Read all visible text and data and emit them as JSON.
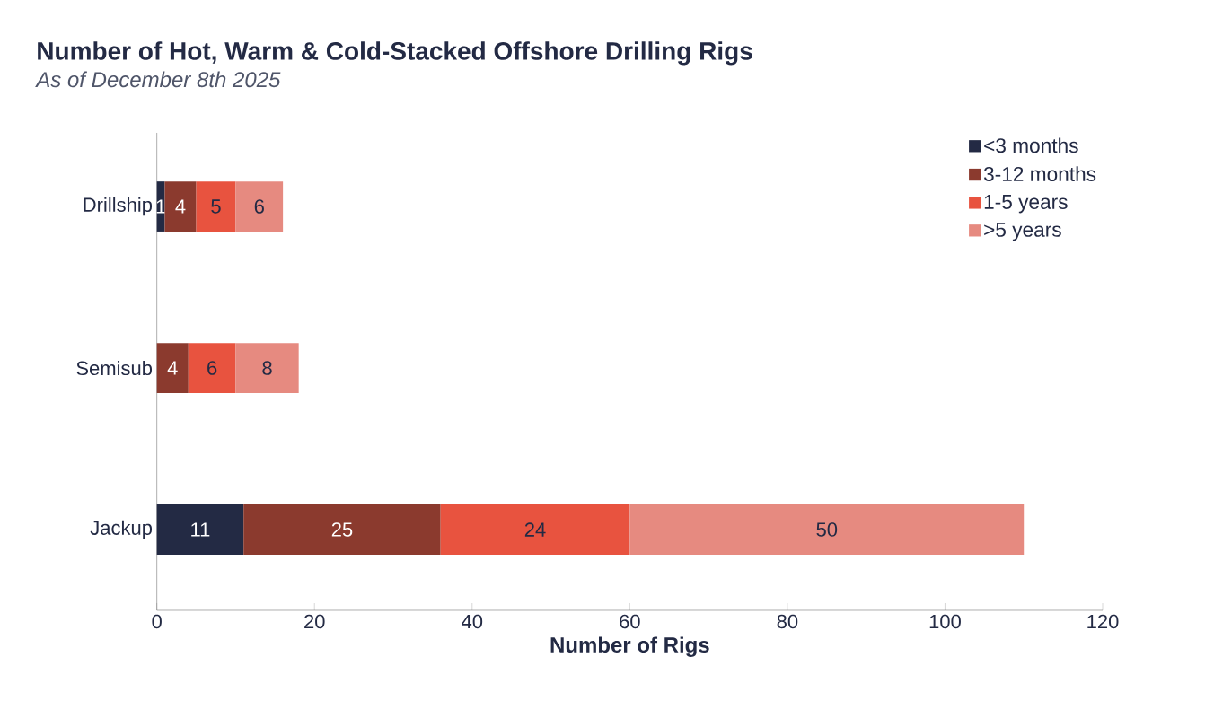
{
  "chart_data": {
    "type": "bar",
    "orientation": "horizontal",
    "stacked": true,
    "title": "Number of Hot, Warm & Cold-Stacked Offshore Drilling Rigs",
    "subtitle": "As of December 8th 2025",
    "xlabel": "Number of Rigs",
    "categories": [
      "Drillship",
      "Semisub",
      "Jackup"
    ],
    "series": [
      {
        "name": "<3 months",
        "color": "#232a44",
        "values": [
          1,
          null,
          11
        ]
      },
      {
        "name": "3-12 months",
        "color": "#8b3a2e",
        "values": [
          4,
          4,
          25
        ]
      },
      {
        "name": "1-5 years",
        "color": "#e8533f",
        "values": [
          5,
          6,
          24
        ]
      },
      {
        "name": ">5 years",
        "color": "#e68a80",
        "values": [
          6,
          8,
          50
        ]
      }
    ],
    "xlim": [
      0,
      120
    ],
    "xticks": [
      0,
      20,
      40,
      60,
      80,
      100,
      120
    ],
    "data_labels": true,
    "legend": "top right",
    "grid": false
  }
}
